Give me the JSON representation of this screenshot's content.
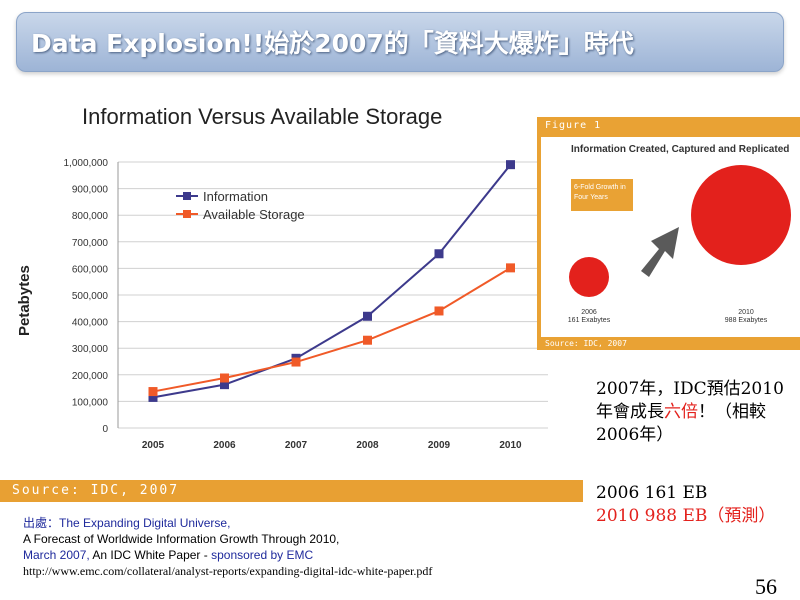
{
  "slide": {
    "title_en": "Data Explosion!!",
    "title_zh": "始於2007的「資料大爆炸」時代",
    "page_number": "56"
  },
  "chart_data": [
    {
      "type": "line",
      "title": "Information Versus Available Storage",
      "ylabel": "Petabytes",
      "xlabel": "",
      "x": [
        "2005",
        "2006",
        "2007",
        "2008",
        "2009",
        "2010"
      ],
      "ylim": [
        0,
        1000000
      ],
      "yticks": [
        "0",
        "100,000",
        "200,000",
        "300,000",
        "400,000",
        "500,000",
        "600,000",
        "700,000",
        "800,000",
        "900,000",
        "1,000,000"
      ],
      "grid": true,
      "legend": "top-left",
      "series": [
        {
          "name": "Information",
          "color": "#3d3a8c",
          "values": [
            115000,
            163000,
            262000,
            420000,
            655000,
            990000
          ]
        },
        {
          "name": "Available Storage",
          "color": "#f05a28",
          "values": [
            137000,
            188000,
            248000,
            330000,
            440000,
            602000
          ]
        }
      ],
      "source": "Source: IDC, 2007"
    },
    {
      "type": "bubble",
      "figure_label": "Figure 1",
      "title": "Information Created, Captured and Replicated",
      "note": "6-Fold Growth in Four Years",
      "items": [
        {
          "label": "2006",
          "value_label": "161 Exabytes",
          "value": 161
        },
        {
          "label": "2010",
          "value_label": "988 Exabytes",
          "value": 988
        }
      ],
      "source": "Source: IDC, 2007",
      "color": "#e3211c"
    }
  ],
  "notes": {
    "line1_a": "2007年，IDC預估2010",
    "line2_a": "年會成長",
    "line2_red": "六倍",
    "line2_b": "！（相較",
    "line3": "2006年）",
    "stat1": "2006 161 EB",
    "stat2": "2010 988 EB（預測）"
  },
  "citation": {
    "label": "出處：",
    "title": "The Expanding Digital Universe,",
    "line2": "A Forecast of Worldwide Information Growth Through 2010,",
    "date": "March 2007,",
    "line3_b": " An IDC White Paper - ",
    "sponsor": "sponsored by EMC",
    "url": "http://www.emc.com/collateral/analyst-reports/expanding-digital-idc-white-paper.pdf"
  }
}
